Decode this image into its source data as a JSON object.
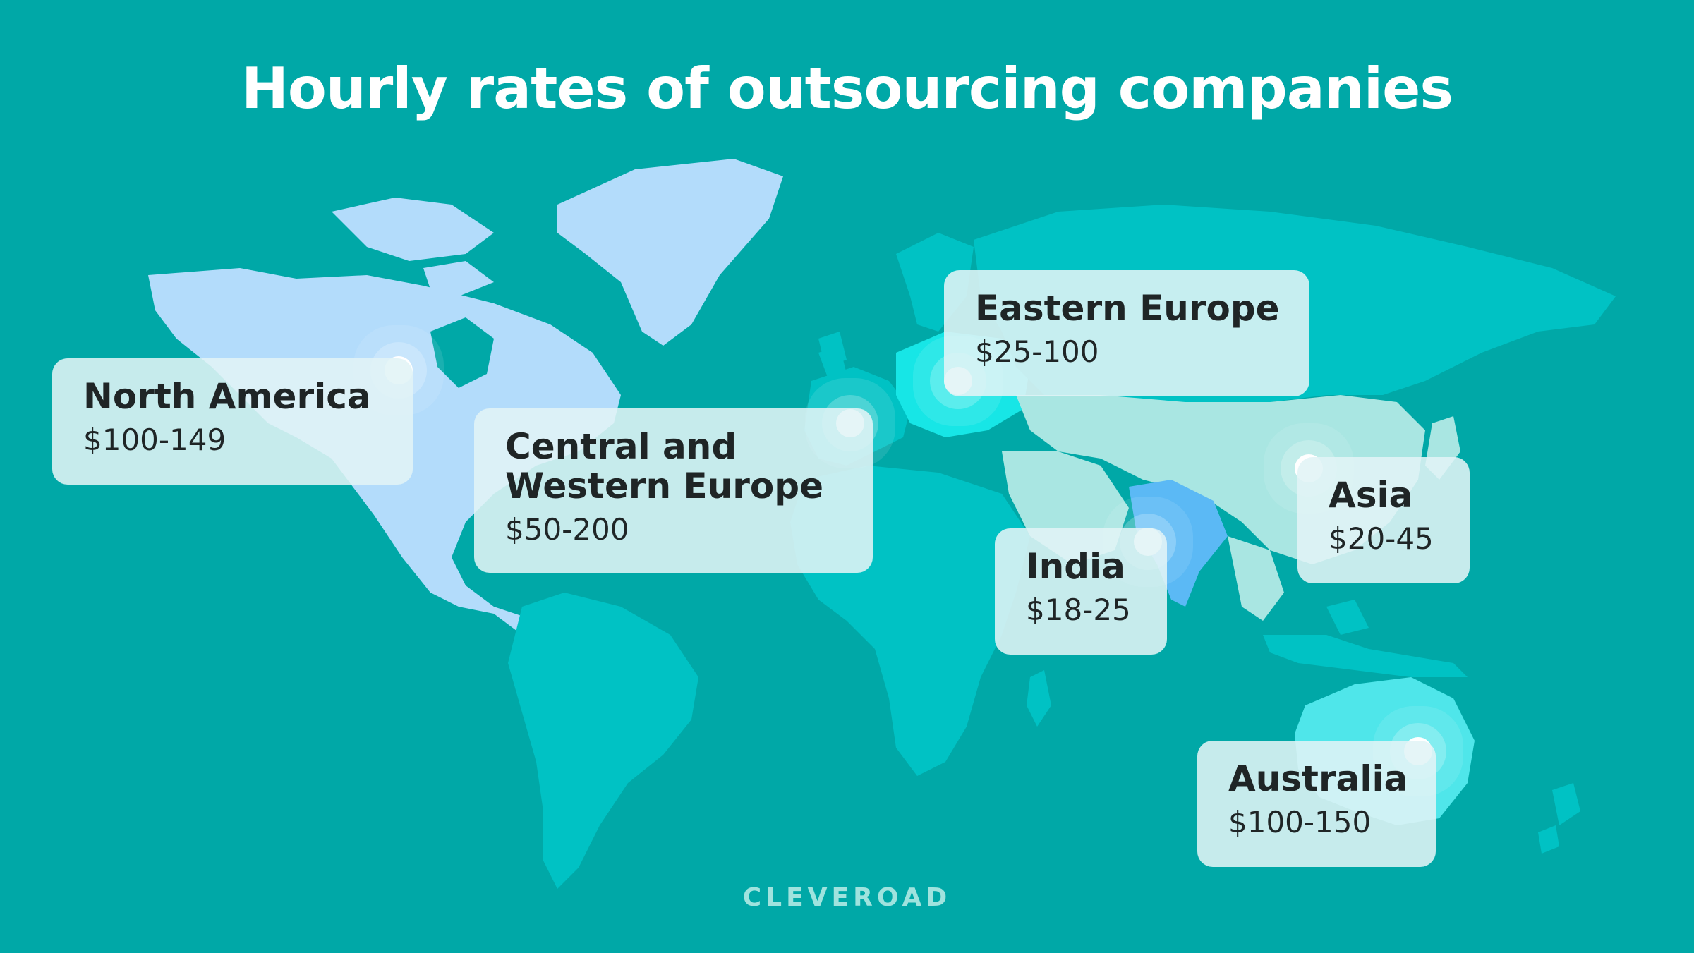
{
  "title": "Hourly rates of outsourcing companies",
  "brand": "CLEVEROAD",
  "colors": {
    "background": "#00a8a7",
    "north_america": "#b3dcfb",
    "europe_east": "#17e6e6",
    "south_america_africa": "#00c2c4",
    "asia": "#a9e6e2",
    "india": "#5bb9f5",
    "australia": "#4fe6ea",
    "card": "#e1f4f6",
    "text": "#1f2526"
  },
  "regions": [
    {
      "name": "North America",
      "rate": "$100-149"
    },
    {
      "name": "Central and Western Europe",
      "name_lines": [
        "Central and",
        "Western Europe"
      ],
      "rate": "$50-200"
    },
    {
      "name": "Eastern Europe",
      "rate": "$25-100"
    },
    {
      "name": "India",
      "rate": "$18-25"
    },
    {
      "name": "Asia",
      "rate": "$20-45"
    },
    {
      "name": "Australia",
      "rate": "$100-150"
    }
  ]
}
